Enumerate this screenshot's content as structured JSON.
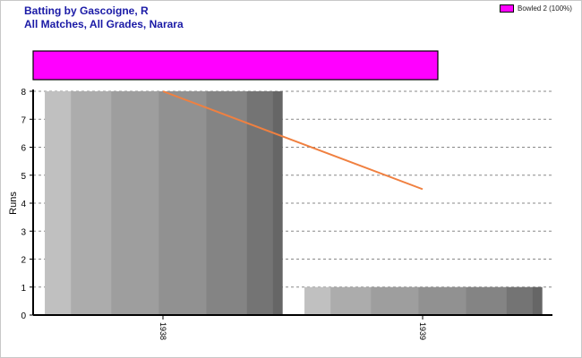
{
  "header": {
    "title_line1": "Batting by Gascoigne, R",
    "title_line2": "All Matches, All Grades, Narara"
  },
  "legend": {
    "label": "Bowled 2 (100%)",
    "color": "#ff00ff"
  },
  "colors": {
    "dismissal_bar": "#ff00ff",
    "trend_line": "#f08040",
    "grid": "#888888"
  },
  "chart_data": {
    "type": "bar",
    "categories": [
      "1938",
      "1939"
    ],
    "values": [
      8,
      1
    ],
    "ylabel": "Runs",
    "xlabel": "",
    "ylim": [
      0,
      8
    ],
    "yticks": [
      0,
      1,
      2,
      3,
      4,
      5,
      6,
      7,
      8
    ],
    "grid": true,
    "legend_position": "top-right",
    "trend_line": {
      "start": 8,
      "end": 4.5
    },
    "dismissal_summary": [
      {
        "name": "Bowled",
        "count": 2,
        "percent": 100
      }
    ]
  }
}
